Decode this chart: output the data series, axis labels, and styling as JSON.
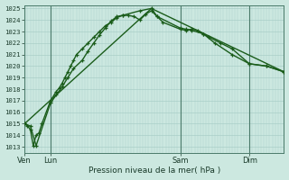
{
  "xlabel": "Pression niveau de la mer( hPa )",
  "ylim": [
    1013,
    1025
  ],
  "yticks": [
    1013,
    1014,
    1015,
    1016,
    1017,
    1018,
    1019,
    1020,
    1021,
    1022,
    1023,
    1024,
    1025
  ],
  "bg_color": "#cce8e0",
  "grid_color": "#aacfc8",
  "line_color": "#1a5c1a",
  "xtick_labels": [
    "Ven",
    "Lun",
    "Sam",
    "Dim"
  ],
  "xtick_positions": [
    0,
    9,
    54,
    78
  ],
  "xlim": [
    0,
    90
  ],
  "vline_x": [
    0,
    9,
    54,
    78
  ],
  "line1_x": [
    0,
    1,
    2,
    3,
    4,
    5,
    6,
    9,
    11,
    12,
    13,
    14,
    15,
    16,
    17,
    18,
    20,
    22,
    24,
    26,
    28,
    30,
    32,
    34,
    36,
    38,
    40,
    42,
    44,
    46,
    48,
    54,
    56,
    58,
    60,
    62,
    64,
    68,
    72,
    78,
    84,
    90
  ],
  "line1_y": [
    1015.0,
    1014.8,
    1014.5,
    1013.1,
    1014.0,
    1014.2,
    1015.0,
    1017.0,
    1017.8,
    1018.1,
    1018.5,
    1019.0,
    1019.5,
    1020.0,
    1020.5,
    1021.0,
    1021.5,
    1022.0,
    1022.5,
    1023.0,
    1023.5,
    1023.8,
    1024.2,
    1024.4,
    1024.4,
    1024.3,
    1024.0,
    1024.5,
    1024.8,
    1024.3,
    1023.8,
    1023.2,
    1023.1,
    1023.2,
    1023.1,
    1022.8,
    1022.5,
    1022.0,
    1021.5,
    1020.2,
    1020.0,
    1019.5
  ],
  "line2_x": [
    0,
    2,
    4,
    9,
    11,
    13,
    15,
    17,
    20,
    22,
    24,
    26,
    28,
    30,
    32,
    34,
    40,
    44,
    46,
    54,
    56,
    58,
    62,
    66,
    72,
    78,
    84,
    90
  ],
  "line2_y": [
    1015.0,
    1014.8,
    1013.1,
    1016.8,
    1017.5,
    1018.2,
    1019.0,
    1019.8,
    1020.5,
    1021.3,
    1022.0,
    1022.7,
    1023.3,
    1023.9,
    1024.3,
    1024.4,
    1024.8,
    1025.0,
    1024.3,
    1023.3,
    1023.2,
    1023.1,
    1022.8,
    1022.0,
    1021.0,
    1020.2,
    1020.0,
    1019.5
  ],
  "line3_x": [
    0,
    44,
    90
  ],
  "line3_y": [
    1015.0,
    1025.0,
    1019.5
  ]
}
